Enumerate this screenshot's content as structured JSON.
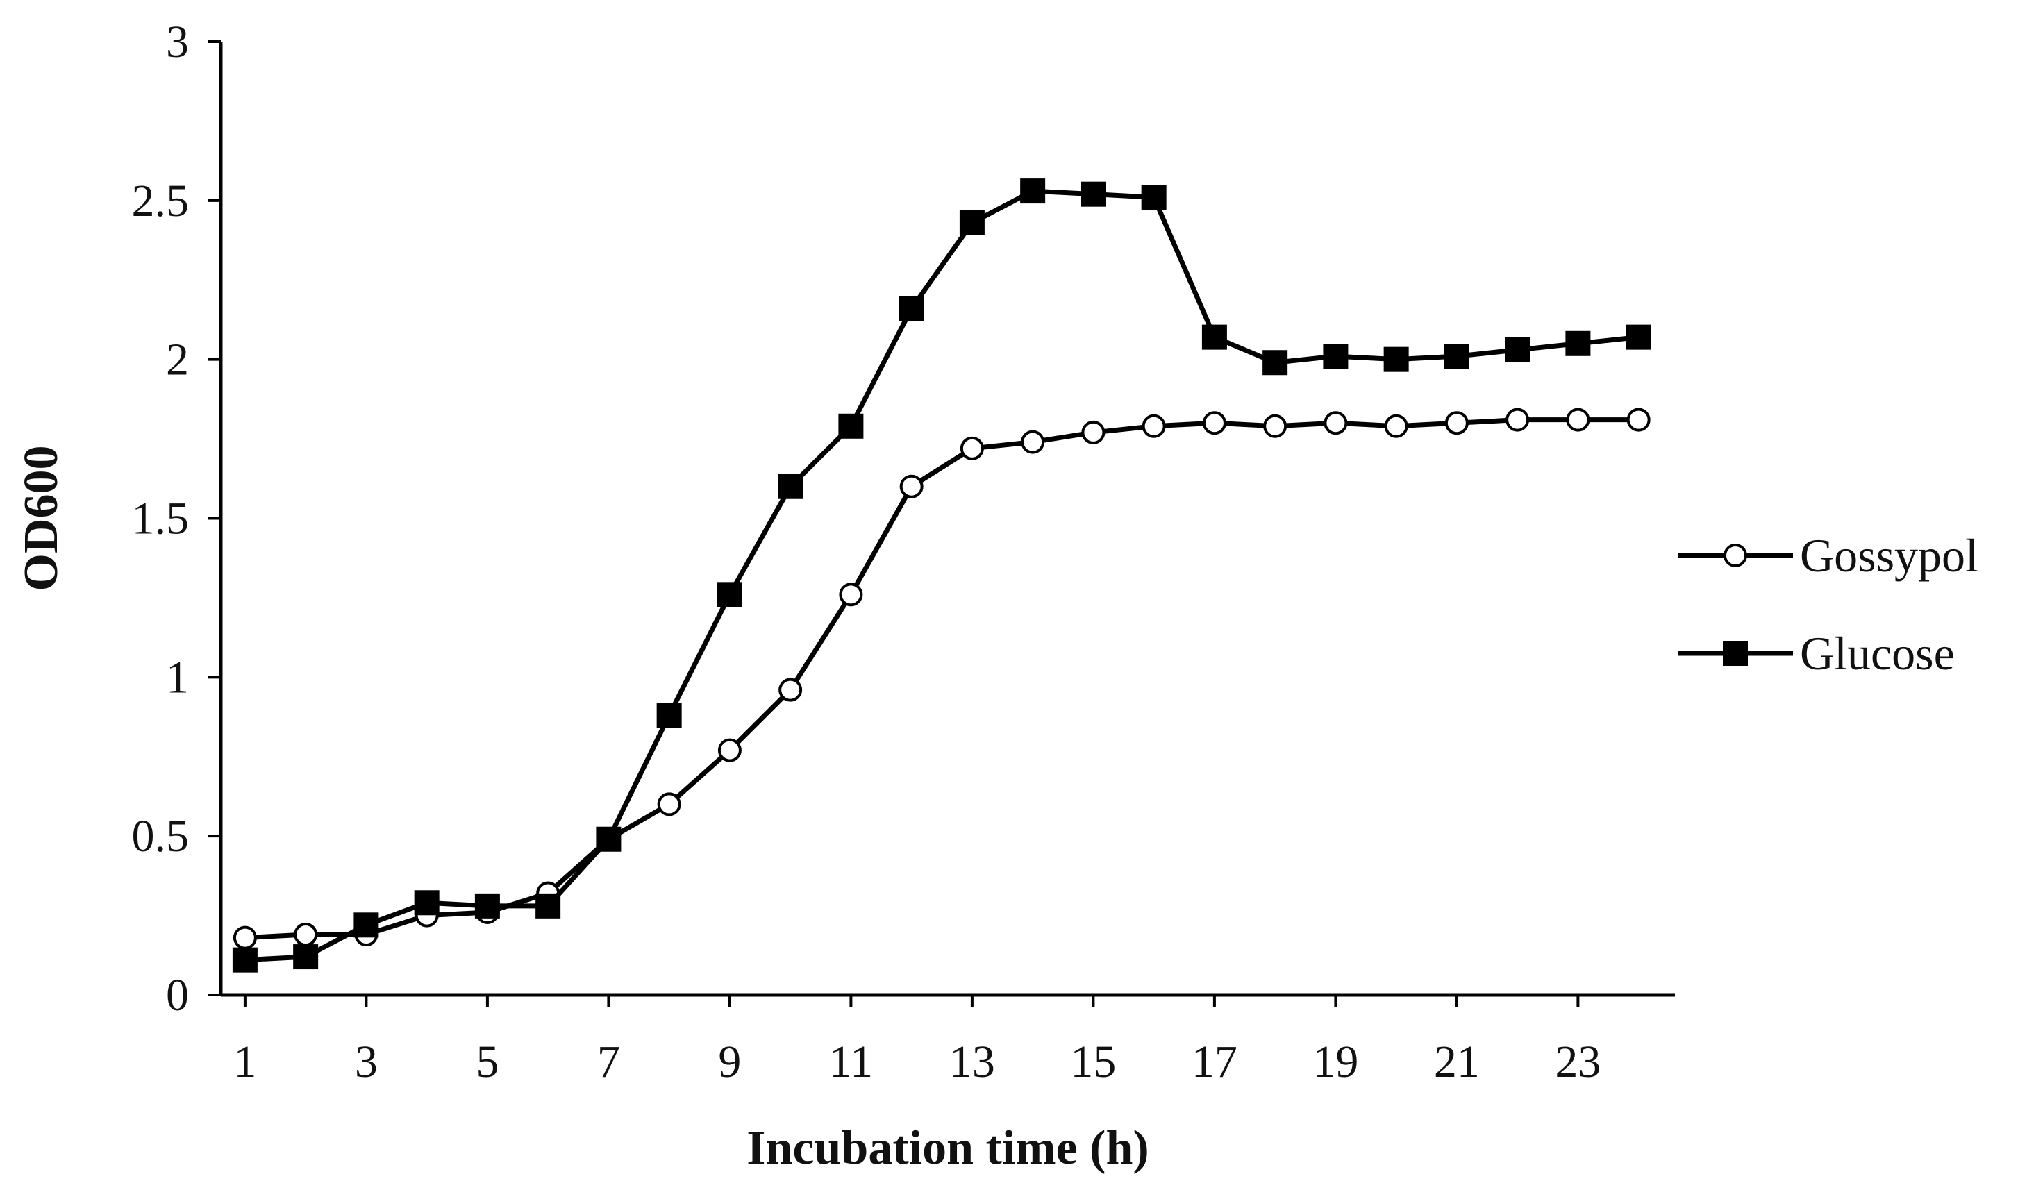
{
  "chart_data": {
    "type": "line",
    "title": "",
    "xlabel": "Incubation time (h)",
    "ylabel": "OD600",
    "xlim": [
      0.6,
      24.6
    ],
    "ylim": [
      0,
      3
    ],
    "x_ticks": [
      1,
      3,
      5,
      7,
      9,
      11,
      13,
      15,
      17,
      19,
      21,
      23
    ],
    "y_ticks": [
      0,
      0.5,
      1,
      1.5,
      2,
      2.5,
      3
    ],
    "y_tick_labels": [
      "0",
      "0.5",
      "1",
      "1.5",
      "2",
      "2.5",
      "3"
    ],
    "grid": false,
    "legend_position": "right",
    "x": [
      1,
      2,
      3,
      4,
      5,
      6,
      7,
      8,
      9,
      10,
      11,
      12,
      13,
      14,
      15,
      16,
      17,
      18,
      19,
      20,
      21,
      22,
      23,
      24
    ],
    "series": [
      {
        "name": "Gossypol",
        "marker": "open-circle",
        "values": [
          0.18,
          0.19,
          0.19,
          0.25,
          0.26,
          0.32,
          0.49,
          0.6,
          0.77,
          0.96,
          1.26,
          1.6,
          1.72,
          1.74,
          1.77,
          1.79,
          1.8,
          1.79,
          1.8,
          1.79,
          1.8,
          1.81,
          1.81,
          1.81
        ]
      },
      {
        "name": "Glucose",
        "marker": "filled-square",
        "values": [
          0.11,
          0.12,
          0.22,
          0.29,
          0.28,
          0.28,
          0.49,
          0.88,
          1.26,
          1.6,
          1.79,
          2.16,
          2.43,
          2.53,
          2.52,
          2.51,
          2.07,
          1.99,
          2.01,
          2.0,
          2.01,
          2.03,
          2.05,
          2.07
        ]
      }
    ]
  },
  "colors": {
    "line": "#000000",
    "marker_fill_open": "#ffffff",
    "marker_fill_solid": "#000000"
  }
}
